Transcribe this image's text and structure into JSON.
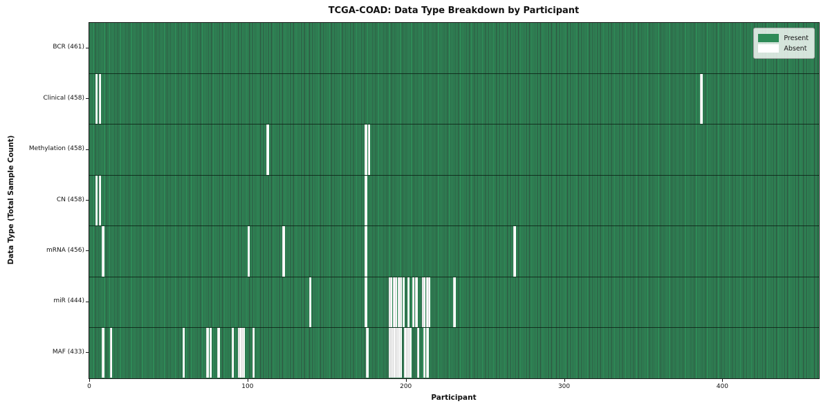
{
  "title": "TCGA-COAD: Data Type Breakdown by Participant",
  "chart_data": {
    "type": "heatmap",
    "title": "TCGA-COAD: Data Type Breakdown by Participant",
    "xlabel": "Participant",
    "ylabel": "Data Type (Total Sample Count)",
    "x_ticks": [
      0,
      100,
      200,
      300,
      400
    ],
    "x_range": [
      0,
      461
    ],
    "total_participants": 461,
    "grid": false,
    "legend_position": "upper right",
    "colors": {
      "present": "#2E8B57",
      "present_edge": "#0A2A1A",
      "absent": "#FFFFFF"
    },
    "legend": [
      {
        "label": "Present",
        "color": "#2E8B57"
      },
      {
        "label": "Absent",
        "color": "#FFFFFF"
      }
    ],
    "rows": [
      {
        "label": "BCR (461)",
        "data_type": "BCR",
        "total_samples": 461,
        "absent_participants": []
      },
      {
        "label": "Clinical (458)",
        "data_type": "Clinical",
        "total_samples": 458,
        "absent_participants": [
          4,
          6,
          386
        ]
      },
      {
        "label": "Methylation (458)",
        "data_type": "Methylation",
        "total_samples": 458,
        "absent_participants": [
          112,
          174,
          176
        ]
      },
      {
        "label": "CN (458)",
        "data_type": "CN",
        "total_samples": 458,
        "absent_participants": [
          4,
          6,
          174
        ]
      },
      {
        "label": "mRNA (456)",
        "data_type": "mRNA",
        "total_samples": 456,
        "absent_participants": [
          8,
          100,
          122,
          174,
          268
        ]
      },
      {
        "label": "miR (444)",
        "data_type": "miR",
        "total_samples": 444,
        "absent_participants": [
          139,
          174,
          189,
          190,
          192,
          193,
          195,
          196,
          198,
          201,
          204,
          206,
          210,
          211,
          213,
          214,
          230
        ]
      },
      {
        "label": "MAF (433)",
        "data_type": "MAF",
        "total_samples": 433,
        "absent_participants": [
          8,
          13,
          59,
          74,
          76,
          81,
          90,
          94,
          95,
          96,
          97,
          103,
          175,
          189,
          190,
          191,
          192,
          193,
          194,
          195,
          196,
          199,
          200,
          201,
          202,
          207,
          211,
          213
        ]
      }
    ]
  }
}
